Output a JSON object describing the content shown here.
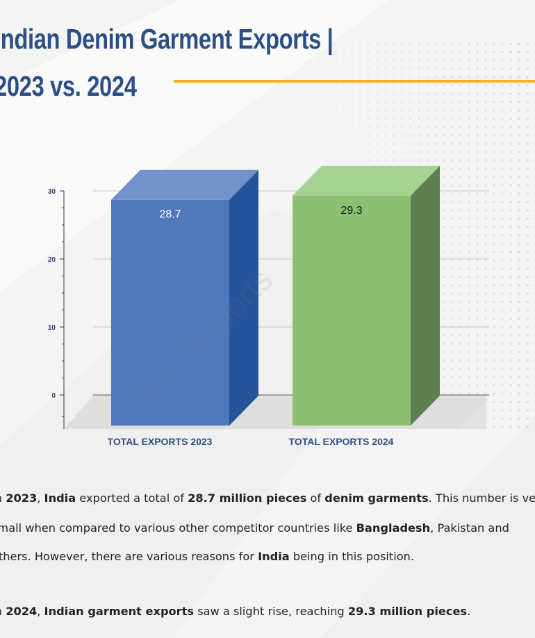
{
  "page": {
    "title_line1": "Indian Denim Garment Exports |",
    "title_line2": "2023 vs. 2024",
    "colors": {
      "title": "#2c4f86",
      "accent_rule": "#f2b01e",
      "bar_2023": "#5079bb",
      "bar_2024": "#8cc174",
      "axis_text": "#2c3e75"
    }
  },
  "watermark": "D&J Reports",
  "chart_data": {
    "type": "bar",
    "categories": [
      "TOTAL EXPORTS 2023",
      "TOTAL EXPORTS 2024"
    ],
    "values": [
      28.7,
      29.3
    ],
    "data_labels": [
      "28.7",
      "29.3"
    ],
    "title": "",
    "xlabel": "",
    "ylabel": "",
    "ylim": [
      0,
      30
    ],
    "yticks": [
      0,
      10,
      20,
      30
    ],
    "grid": true,
    "style": "3d"
  },
  "paragraphs": [
    {
      "runs": [
        {
          "text": "In ",
          "bold": false
        },
        {
          "text": "2023",
          "bold": true
        },
        {
          "text": ", ",
          "bold": false
        },
        {
          "text": "India",
          "bold": true
        },
        {
          "text": " exported a total of ",
          "bold": false
        },
        {
          "text": "28.7 million pieces",
          "bold": true
        },
        {
          "text": " of ",
          "bold": false
        },
        {
          "text": "denim garments",
          "bold": true
        },
        {
          "text": ". This number is very",
          "bold": false
        }
      ]
    },
    {
      "runs": [
        {
          "text": "small when compared to various other competitor countries like ",
          "bold": false
        },
        {
          "text": "Bangladesh",
          "bold": true
        },
        {
          "text": ", Pakistan and",
          "bold": false
        }
      ]
    },
    {
      "runs": [
        {
          "text": "others. However, there are various reasons for ",
          "bold": false
        },
        {
          "text": "India",
          "bold": true
        },
        {
          "text": " being in this position.",
          "bold": false
        }
      ]
    },
    {
      "runs": [
        {
          "text": "In ",
          "bold": false
        },
        {
          "text": "2024",
          "bold": true
        },
        {
          "text": ", ",
          "bold": false
        },
        {
          "text": "Indian garment exports",
          "bold": true
        },
        {
          "text": " saw a slight rise, reaching ",
          "bold": false
        },
        {
          "text": "29.3 million pieces",
          "bold": true
        },
        {
          "text": ".",
          "bold": false
        }
      ]
    }
  ]
}
